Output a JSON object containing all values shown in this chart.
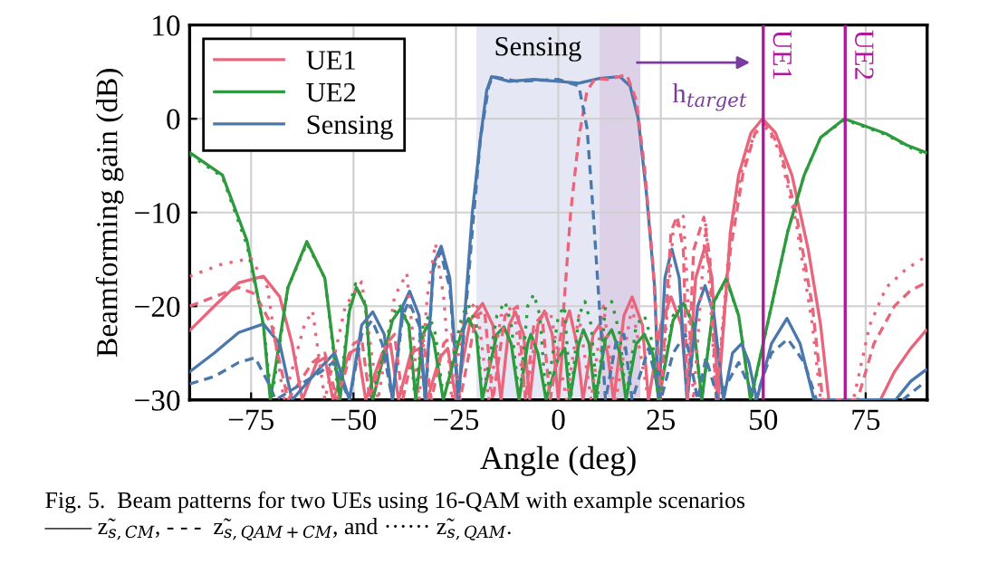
{
  "chart_data": {
    "type": "line",
    "xlabel": "Angle (deg)",
    "ylabel": "Beamforming gain (dB)",
    "xlim": [
      -90,
      90
    ],
    "ylim": [
      -30,
      10
    ],
    "xticks": [
      -75,
      -50,
      -25,
      0,
      25,
      50,
      75
    ],
    "yticks": [
      -30,
      -20,
      -10,
      0,
      10
    ],
    "grid": true,
    "legend": "top left",
    "series": [
      {
        "name": "UE1",
        "color": "#e8657b",
        "line_style": "solid",
        "x": [
          -90,
          -84,
          -78,
          -72,
          -68,
          -65,
          -62.5,
          -59,
          -57,
          -55,
          -51,
          -49,
          -47,
          -43,
          -41,
          -39,
          -36,
          -34,
          -32,
          -29,
          -27,
          -25,
          -21.5,
          -18.5,
          -16,
          -14,
          -12,
          -10.5,
          -8.5,
          -7,
          -5,
          -3.4,
          -1.5,
          0,
          1.5,
          2.7,
          4.5,
          6,
          8.5,
          10,
          12,
          13.5,
          16,
          18,
          20.5,
          22,
          25,
          27.5,
          30,
          31.5,
          33.5,
          35.8,
          37.5,
          39,
          42,
          44,
          47,
          49.8,
          53,
          57,
          61,
          64,
          66,
          70,
          78.6,
          82,
          86,
          89.7
        ],
        "values": [
          -22.6,
          -20,
          -17.5,
          -16.8,
          -19,
          -24,
          -30,
          -26,
          -25.5,
          -30,
          -25,
          -24.5,
          -30,
          -25,
          -24,
          -30,
          -25,
          -24.5,
          -30,
          -25.5,
          -24.5,
          -30,
          -21.5,
          -19.7,
          -22,
          -30,
          -22,
          -20.6,
          -23,
          -30,
          -22,
          -20.5,
          -23,
          -30,
          -22,
          -20.5,
          -24,
          -30,
          -23,
          -22,
          -25,
          -30,
          -21,
          -19,
          -22,
          -30,
          -22,
          -19,
          -22,
          -30,
          -17,
          -13.6,
          -17,
          -30,
          -12,
          -6,
          -1.5,
          0,
          -1.5,
          -6,
          -14,
          -22,
          -30,
          -30,
          -30,
          -27,
          -24.5,
          -22.6
        ]
      },
      {
        "name": "UE2",
        "color": "#2e9a3e",
        "line_style": "solid",
        "x": [
          -90,
          -82,
          -76,
          -72,
          -70.3,
          -66,
          -61.4,
          -57,
          -53.3,
          -51,
          -49.3,
          -47,
          -45.3,
          -40.5,
          -38.6,
          -36.5,
          -34.8,
          -33,
          -31.9,
          -30.5,
          -28.1,
          -23.5,
          -21.9,
          -20,
          -18.6,
          -15,
          -13.3,
          -11.5,
          -9.6,
          -7.5,
          -6.7,
          -5,
          -3,
          0,
          1.6,
          2.8,
          5,
          6.1,
          7.5,
          9,
          11.5,
          13,
          15,
          16.5,
          19,
          21,
          23,
          24.5,
          28,
          30.5,
          33,
          35,
          38,
          41,
          44,
          46.9,
          52,
          56,
          60,
          64,
          69.8,
          75,
          80,
          85,
          89.7
        ],
        "values": [
          -3.6,
          -6,
          -13,
          -22,
          -30,
          -18,
          -13.1,
          -17,
          -30,
          -20.5,
          -18,
          -20,
          -30,
          -21.5,
          -20.3,
          -22,
          -30,
          -23,
          -22,
          -23.5,
          -30,
          -22.5,
          -21.3,
          -23,
          -30,
          -23,
          -22.2,
          -24,
          -30,
          -24,
          -23,
          -25,
          -30,
          -25.5,
          -24.5,
          -30,
          -24,
          -22.5,
          -24,
          -30,
          -23.5,
          -22.5,
          -25,
          -30,
          -24,
          -23,
          -25,
          -30,
          -21.5,
          -19.7,
          -22,
          -30,
          -19.5,
          -17,
          -21,
          -30,
          -20,
          -12,
          -6,
          -2,
          0,
          -0.8,
          -1.6,
          -2.8,
          -3.6
        ]
      },
      {
        "name": "Sensing",
        "color": "#4a78ad",
        "line_style": "solid",
        "x": [
          -90,
          -84,
          -78,
          -72,
          -68,
          -65,
          -58,
          -54.6,
          -51,
          -48,
          -45.3,
          -42.5,
          -40.5,
          -38,
          -36.3,
          -34,
          -32.5,
          -30.5,
          -28.6,
          -26.5,
          -24.4,
          -21,
          -19,
          -17.5,
          -16.3,
          -12,
          -6,
          0,
          5,
          10,
          15,
          17.5,
          19.5,
          21.5,
          23.5,
          24.5,
          26,
          27.7,
          29.5,
          31.4,
          34,
          35.8,
          38,
          40.3,
          42.5,
          44.7,
          46.5,
          48.4,
          52,
          55.8,
          59,
          62.4,
          82.3,
          86,
          89.7
        ],
        "values": [
          -27,
          -25,
          -22.8,
          -21.9,
          -24,
          -30,
          -26.5,
          -25,
          -30,
          -22,
          -20.6,
          -23,
          -30,
          -20,
          -18.4,
          -21,
          -30,
          -15.5,
          -13.6,
          -17,
          -30,
          -10,
          -2,
          3,
          4.5,
          4,
          4.2,
          4,
          3.8,
          4.3,
          4.5,
          3.5,
          0,
          -8,
          -18,
          -30,
          -17,
          -13.9,
          -17,
          -30,
          -20,
          -17.8,
          -21,
          -30,
          -25,
          -24,
          -26,
          -30,
          -24,
          -21.3,
          -24,
          -30,
          -30,
          -28,
          -26.8
        ]
      },
      {
        "color": "#e8657b",
        "line_style": "dashed",
        "x": [
          -90,
          -84,
          -78,
          -74,
          -70,
          -66,
          -60,
          -57,
          -54,
          -50,
          -48,
          -46,
          -42,
          -40,
          -38,
          -35,
          -33,
          -31,
          -28,
          -26,
          -24,
          -20,
          -18,
          -16,
          -13,
          -10,
          -8,
          -6,
          -4,
          -2,
          1,
          3,
          5,
          7,
          9,
          12,
          16.7,
          19,
          21,
          23,
          25,
          27.5,
          29,
          30.5,
          31.5,
          33,
          35.5,
          37,
          38.5,
          42,
          45,
          48,
          50.5,
          54,
          58,
          62,
          64.5,
          73,
          77,
          82,
          86,
          89.7
        ],
        "values": [
          -20,
          -19,
          -18,
          -18.7,
          -22,
          -30,
          -26,
          -25,
          -30,
          -24,
          -23.5,
          -30,
          -24,
          -23,
          -30,
          -24,
          -23.5,
          -30,
          -24,
          -23,
          -30,
          -21,
          -20.5,
          -30,
          -21,
          -20,
          -30,
          -22,
          -21,
          -30,
          -22,
          -10,
          -2,
          3,
          4.3,
          4.2,
          4.7,
          2,
          -5,
          -15,
          -30,
          -12,
          -10.4,
          -14,
          -30,
          -14,
          -10.5,
          -15,
          -30,
          -14,
          -6,
          -1.5,
          -0.5,
          -3,
          -10,
          -20,
          -30,
          -30,
          -24,
          -20,
          -18.3,
          -17.5
        ]
      },
      {
        "color": "#e8657b",
        "line_style": "dotted",
        "x": [
          -90,
          -82,
          -75,
          -71,
          -67,
          -62,
          -60,
          -57,
          -52,
          -48,
          -44,
          -40,
          -37,
          -34,
          -32,
          -30,
          -28,
          -26,
          -23,
          -20,
          -17,
          -14,
          -11,
          -8,
          -5,
          -2,
          2,
          5,
          8,
          11,
          14,
          18,
          22,
          25,
          28,
          30.5,
          33,
          36,
          38.5,
          42,
          45,
          48,
          51,
          54,
          58,
          62,
          64,
          72,
          76,
          80,
          85,
          89.7
        ],
        "values": [
          -16.8,
          -15.5,
          -14.9,
          -18,
          -30,
          -22,
          -20.5,
          -30,
          -20,
          -17.4,
          -30,
          -19,
          -16.5,
          -30,
          -19,
          -13.3,
          -19,
          -30,
          -21,
          -19.5,
          -30,
          -21,
          -20,
          -30,
          -21.5,
          -20.5,
          -30,
          -21,
          -30,
          -20,
          -30,
          -20,
          -30,
          -30,
          -12,
          -10.4,
          -30,
          -11,
          -30,
          -12,
          -5,
          -1.5,
          -1,
          -3.5,
          -11,
          -22,
          -30,
          -30,
          -22,
          -18,
          -16,
          -14.7
        ]
      },
      {
        "color": "#4a78ad",
        "line_style": "dashed",
        "x": [
          -90,
          -84,
          -78,
          -74,
          -71,
          -69,
          -58,
          -55,
          -51,
          -48,
          -45.5,
          -43,
          -40.5,
          -38,
          -36.5,
          -34,
          -32.5,
          -30.5,
          -28.8,
          -26.5,
          -24.4,
          -21,
          -19,
          -17,
          -16,
          -10,
          0,
          5,
          7,
          8.5,
          10,
          11.5,
          14,
          16,
          18,
          22,
          25,
          28,
          31,
          34,
          36,
          39,
          44,
          48,
          52,
          56,
          60,
          63,
          84,
          89.7
        ],
        "values": [
          -28.3,
          -27.5,
          -26,
          -25.5,
          -28,
          -30,
          -27,
          -26,
          -30,
          -23,
          -21.5,
          -24,
          -30,
          -21,
          -19.5,
          -22,
          -30,
          -16,
          -14.2,
          -18,
          -30,
          -12,
          -2,
          3.5,
          4.5,
          4,
          4.2,
          3.5,
          -1,
          -10,
          -20,
          -30,
          -24,
          -23,
          -30,
          -24.5,
          -30,
          -25,
          -23,
          -30,
          -25.5,
          -30,
          -26,
          -30,
          -25,
          -23.5,
          -26,
          -30,
          -30,
          -28
        ]
      },
      {
        "color": "#2e9a3e",
        "line_style": "dotted",
        "x": [
          -90,
          -82,
          -76,
          -72,
          -70,
          -66,
          -61.4,
          -57,
          -53.5,
          -51,
          -49.5,
          -47,
          -45.5,
          -40.5,
          -38.8,
          -36.5,
          -35,
          -33,
          -31.5,
          -30,
          -28,
          -23.5,
          -22,
          -20,
          -18.5,
          -15,
          -13,
          -11.5,
          -9.5,
          -7.5,
          -6,
          -4.5,
          -3,
          0,
          1.5,
          3,
          5,
          6.5,
          8,
          9.5,
          11.5,
          13,
          15,
          16.5,
          19,
          21,
          23,
          24.5,
          28,
          30.5,
          33,
          35,
          38,
          41,
          44,
          47,
          52,
          56,
          60,
          64,
          69.8,
          75,
          80,
          85,
          89.7
        ],
        "values": [
          -3.8,
          -6.2,
          -13.5,
          -22,
          -30,
          -18,
          -13.3,
          -17,
          -30,
          -20,
          -17.6,
          -20,
          -30,
          -21,
          -19.8,
          -22,
          -30,
          -22,
          -21,
          -23,
          -30,
          -21,
          -19.8,
          -22,
          -30,
          -21,
          -19.5,
          -22,
          -30,
          -20,
          -18.7,
          -21,
          -30,
          -21,
          -20,
          -30,
          -21,
          -19.5,
          -22,
          -30,
          -20,
          -19.5,
          -23,
          -30,
          -22,
          -21,
          -24,
          -30,
          -21,
          -19.5,
          -22,
          -30,
          -19.5,
          -17.2,
          -21,
          -30,
          -20,
          -12,
          -6,
          -2,
          -0.1,
          -0.9,
          -1.7,
          -2.9,
          -3.8
        ]
      }
    ],
    "ref_lines": [
      {
        "axis": "x",
        "value": 50,
        "label": "UE1",
        "color": "#b0189c"
      },
      {
        "axis": "x",
        "value": 70,
        "label": "UE2",
        "color": "#b0189c"
      }
    ],
    "bands": [
      {
        "axis": "x",
        "from": -20,
        "to": 10,
        "label": "Sensing",
        "color": "#e5e8f4"
      },
      {
        "axis": "x",
        "from": 10,
        "to": 20,
        "color": "#ddd1e8"
      }
    ],
    "annotations": [
      {
        "text": "h$_{target}$",
        "x": 48,
        "y": 6
      },
      "Fig. 5.  Beam patterns for two UEs using 16-QAM with example scenarios\n―― z̃$_{s,CM}$, - - -  z̃$_{s,QAM+CM}$, and ······ z̃$_{s,QAM}$."
    ]
  }
}
